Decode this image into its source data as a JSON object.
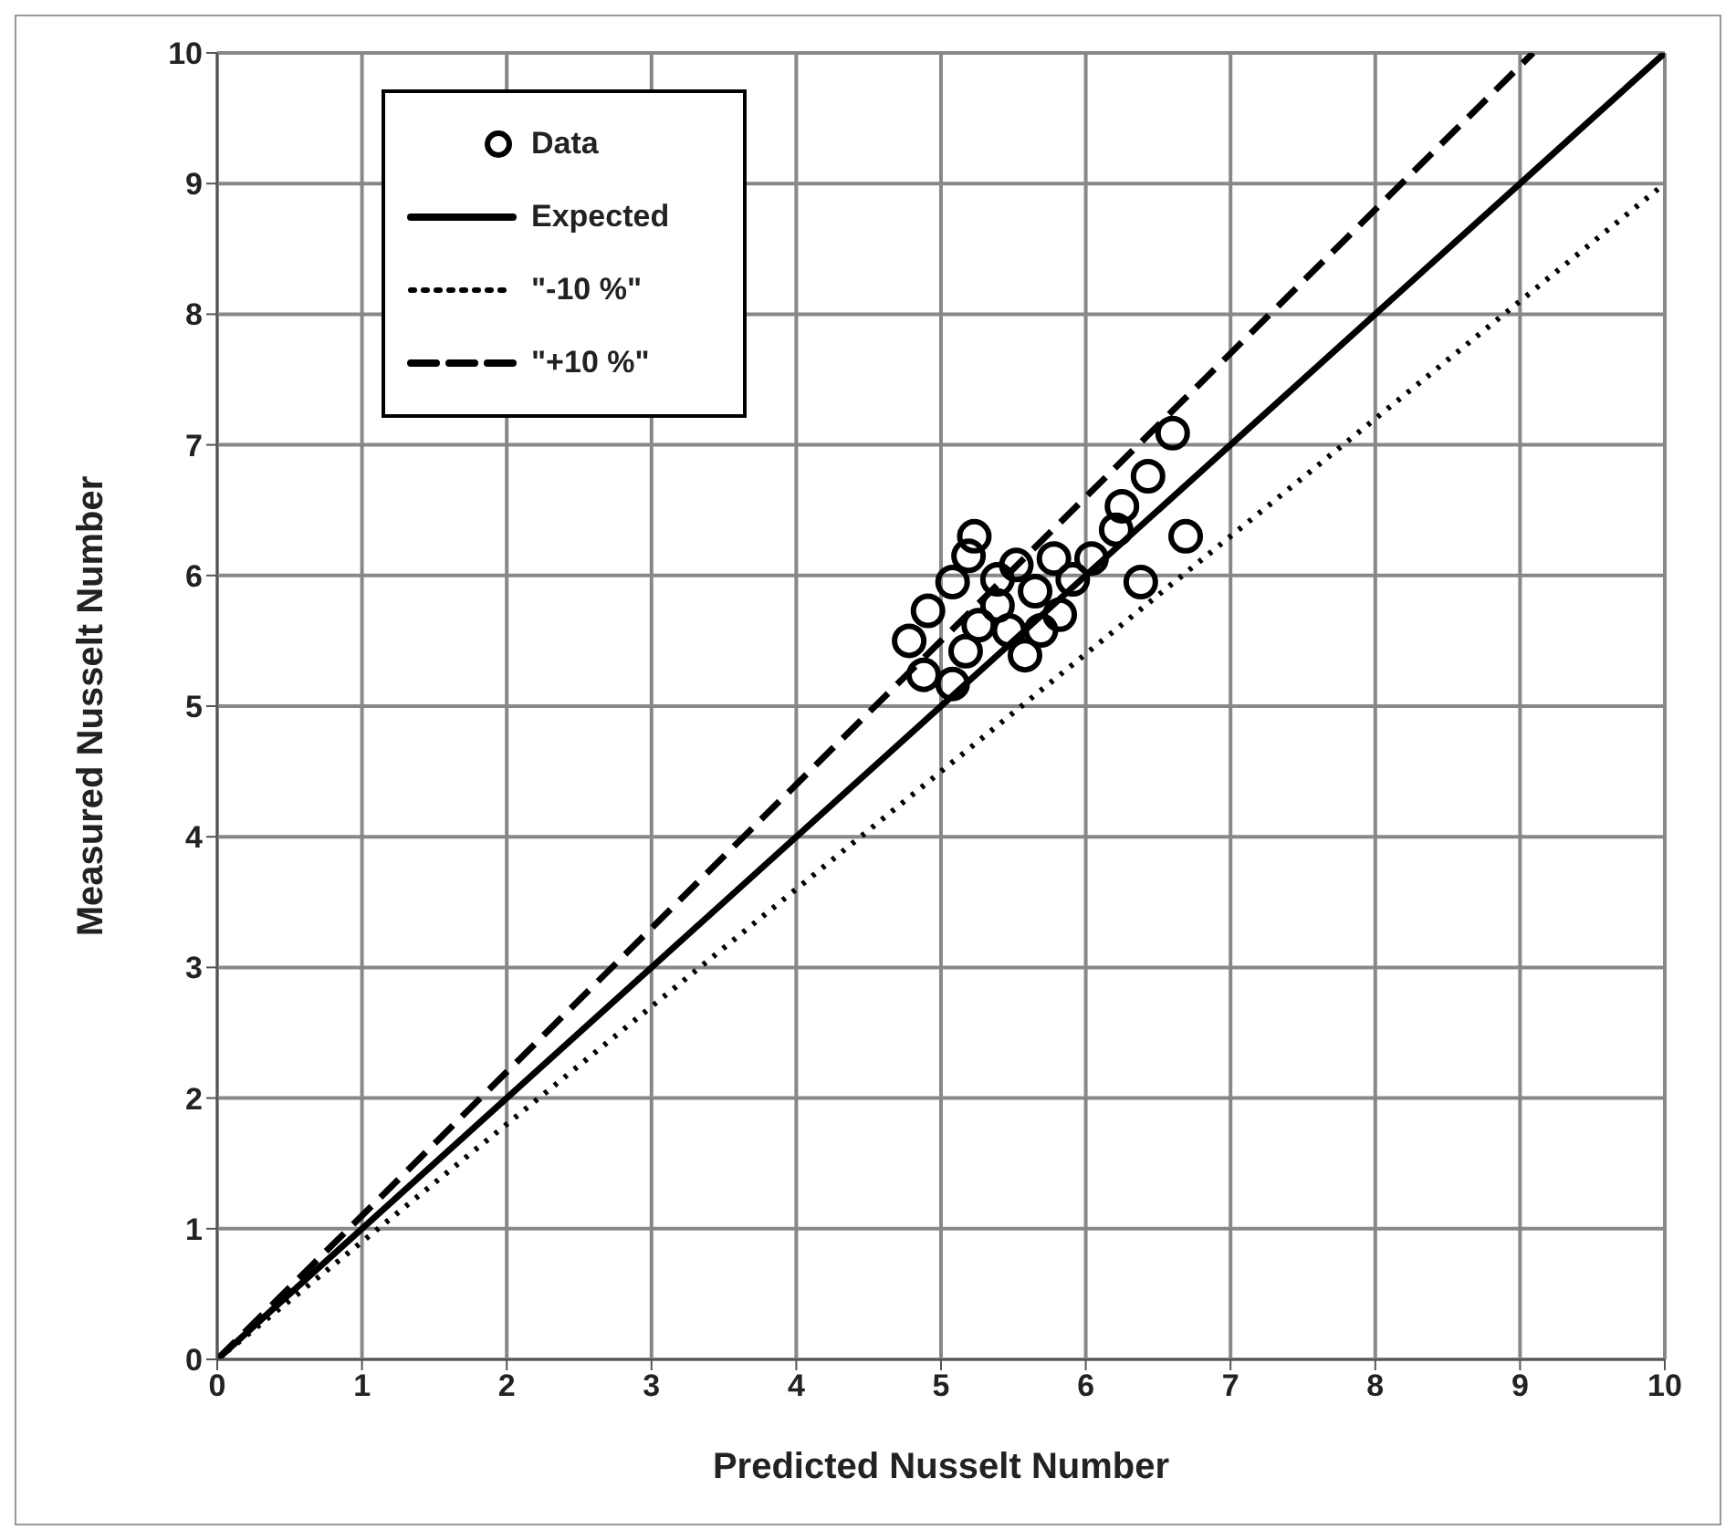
{
  "chart_data": {
    "type": "scatter",
    "xlabel": "Predicted Nusselt Number",
    "ylabel": "Measured Nusselt Number",
    "xlim": [
      0,
      10
    ],
    "ylim": [
      0,
      10
    ],
    "xticks": [
      0,
      1,
      2,
      3,
      4,
      5,
      6,
      7,
      8,
      9,
      10
    ],
    "yticks": [
      0,
      1,
      2,
      3,
      4,
      5,
      6,
      7,
      8,
      9,
      10
    ],
    "grid": true,
    "legend": "top left",
    "series": [
      {
        "name": "Data",
        "marker": "circle",
        "color": "#000000",
        "x": [
          6.6,
          6.43,
          6.25,
          6.21,
          6.69,
          6.38,
          5.23,
          5.19,
          5.08,
          4.91,
          4.78,
          4.88,
          5.08,
          5.58,
          5.82,
          5.39,
          5.52,
          5.39,
          5.26,
          5.65,
          5.91,
          6.04,
          5.78,
          5.47,
          5.17,
          5.69
        ],
        "values": [
          7.09,
          6.76,
          6.53,
          6.35,
          6.3,
          5.95,
          6.3,
          6.15,
          5.95,
          5.73,
          5.5,
          5.24,
          5.17,
          5.39,
          5.7,
          5.97,
          6.08,
          5.77,
          5.62,
          5.88,
          5.97,
          6.13,
          6.13,
          5.58,
          5.42,
          5.58
        ]
      },
      {
        "name": "Expected",
        "type": "line",
        "color": "#000000",
        "line_style": "solid",
        "x": [
          0,
          10
        ],
        "values": [
          0,
          10
        ]
      },
      {
        "name": "\"-10 %\"",
        "type": "line",
        "color": "#000000",
        "line_style": "dotted",
        "x": [
          0,
          10
        ],
        "values": [
          0,
          9
        ]
      },
      {
        "name": "\"+10 %\"",
        "type": "line",
        "color": "#000000",
        "line_style": "dashed",
        "x": [
          0,
          9.09
        ],
        "values": [
          0,
          10
        ]
      }
    ]
  }
}
